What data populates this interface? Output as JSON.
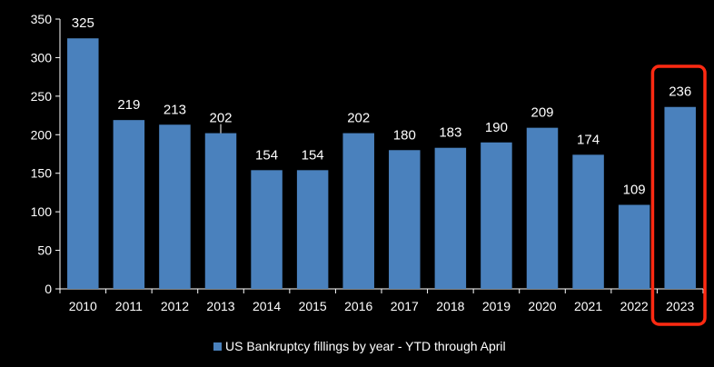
{
  "chart_data": {
    "type": "bar",
    "title": "",
    "xlabel": "",
    "ylabel": "",
    "categories": [
      "2010",
      "2011",
      "2012",
      "2013",
      "2014",
      "2015",
      "2016",
      "2017",
      "2018",
      "2019",
      "2020",
      "2021",
      "2022",
      "2023"
    ],
    "series": [
      {
        "name": "US Bankruptcy fillings by year - YTD through April",
        "values": [
          325,
          219,
          213,
          202,
          154,
          154,
          202,
          180,
          183,
          190,
          209,
          174,
          109,
          236
        ]
      }
    ],
    "ylim": [
      0,
      350
    ],
    "yticks": [
      0,
      50,
      100,
      150,
      200,
      250,
      300,
      350
    ],
    "grid": false,
    "legend_position": "bottom",
    "highlight_category": "2023",
    "colors": {
      "bar": "#4a81bd",
      "background": "#000000",
      "text": "#ffffff",
      "axis": "#ffffff",
      "highlight": "#ff2a12"
    }
  }
}
